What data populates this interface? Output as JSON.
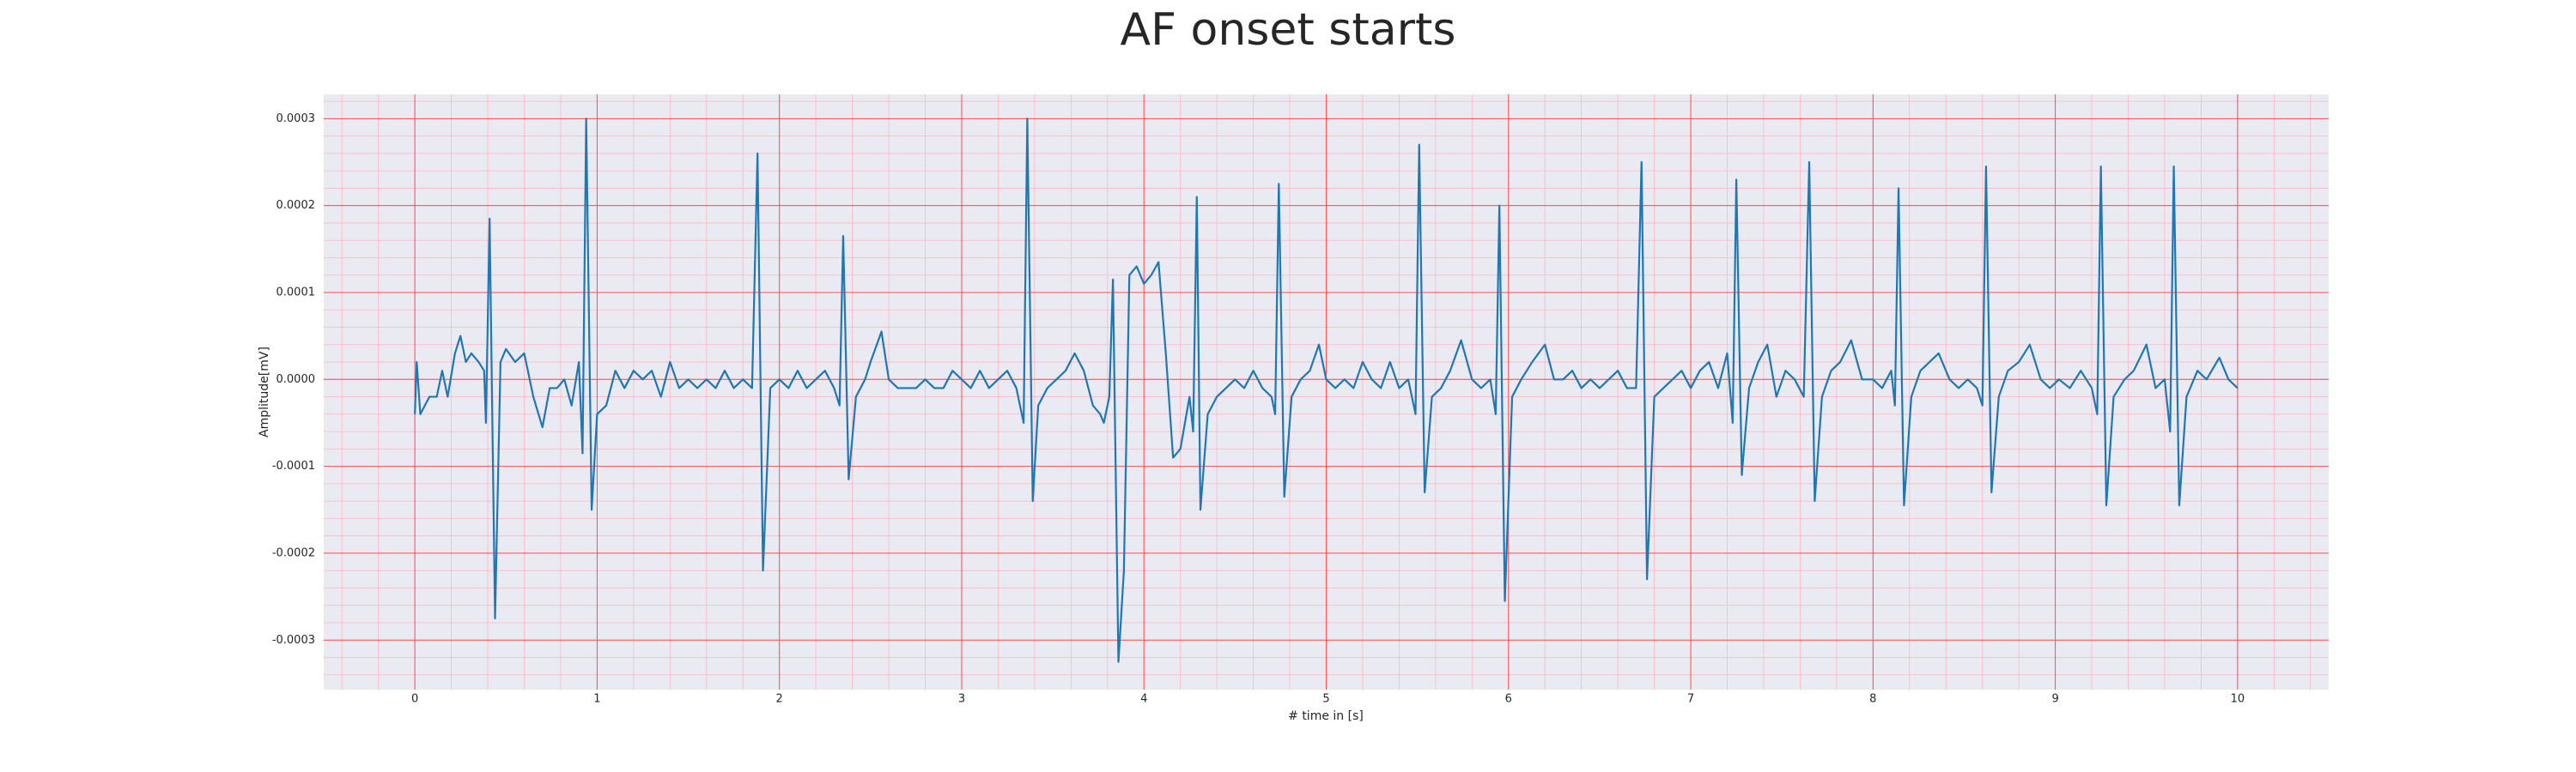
{
  "chart_data": {
    "type": "line",
    "title": "AF onset starts",
    "x_label": "# time in [s]",
    "y_label": "Amplitude[mV]",
    "color": "#1f77b4",
    "grid": true,
    "minor_grid": true,
    "xlim": [
      -0.5,
      10.5
    ],
    "ylim": [
      -0.000357,
      0.000328
    ],
    "xticks": [
      0,
      1,
      2,
      3,
      4,
      5,
      6,
      7,
      8,
      9,
      10
    ],
    "yticks": [
      {
        "value": 0.0003,
        "label": "0.0003"
      },
      {
        "value": 0.0002,
        "label": "0.0002"
      },
      {
        "value": 0.0001,
        "label": "0.0001"
      },
      {
        "value": 0,
        "label": "0.0000"
      },
      {
        "value": -0.0001,
        "label": "-0.0001"
      },
      {
        "value": -0.0002,
        "label": "-0.0002"
      },
      {
        "value": -0.0003,
        "label": "-0.0003"
      }
    ],
    "x": [
      0.0,
      0.01,
      0.03,
      0.08,
      0.12,
      0.15,
      0.18,
      0.22,
      0.25,
      0.28,
      0.31,
      0.35,
      0.38,
      0.39,
      0.41,
      0.44,
      0.47,
      0.5,
      0.55,
      0.6,
      0.65,
      0.7,
      0.74,
      0.78,
      0.82,
      0.86,
      0.9,
      0.92,
      0.94,
      0.97,
      1.0,
      1.05,
      1.1,
      1.15,
      1.2,
      1.25,
      1.3,
      1.35,
      1.4,
      1.45,
      1.5,
      1.55,
      1.6,
      1.65,
      1.7,
      1.75,
      1.8,
      1.85,
      1.88,
      1.91,
      1.95,
      2.0,
      2.05,
      2.1,
      2.15,
      2.2,
      2.25,
      2.3,
      2.33,
      2.35,
      2.38,
      2.42,
      2.47,
      2.5,
      2.56,
      2.6,
      2.65,
      2.7,
      2.75,
      2.8,
      2.85,
      2.9,
      2.95,
      3.0,
      3.05,
      3.1,
      3.15,
      3.2,
      3.25,
      3.3,
      3.34,
      3.36,
      3.39,
      3.42,
      3.47,
      3.52,
      3.57,
      3.62,
      3.67,
      3.72,
      3.76,
      3.78,
      3.81,
      3.83,
      3.86,
      3.89,
      3.92,
      3.96,
      4.0,
      4.04,
      4.08,
      4.12,
      4.16,
      4.2,
      4.25,
      4.27,
      4.29,
      4.31,
      4.35,
      4.4,
      4.45,
      4.5,
      4.55,
      4.6,
      4.65,
      4.7,
      4.72,
      4.74,
      4.77,
      4.81,
      4.86,
      4.91,
      4.96,
      5.0,
      5.05,
      5.1,
      5.15,
      5.2,
      5.25,
      5.3,
      5.35,
      5.4,
      5.45,
      5.49,
      5.51,
      5.54,
      5.58,
      5.63,
      5.68,
      5.74,
      5.8,
      5.85,
      5.9,
      5.93,
      5.95,
      5.98,
      6.02,
      6.07,
      6.13,
      6.2,
      6.25,
      6.3,
      6.35,
      6.4,
      6.45,
      6.5,
      6.55,
      6.6,
      6.65,
      6.7,
      6.73,
      6.76,
      6.8,
      6.85,
      6.9,
      6.95,
      7.0,
      7.05,
      7.1,
      7.15,
      7.2,
      7.23,
      7.25,
      7.28,
      7.32,
      7.37,
      7.42,
      7.47,
      7.52,
      7.57,
      7.62,
      7.65,
      7.68,
      7.72,
      7.77,
      7.82,
      7.88,
      7.94,
      8.0,
      8.05,
      8.1,
      8.12,
      8.14,
      8.17,
      8.21,
      8.26,
      8.31,
      8.36,
      8.42,
      8.47,
      8.52,
      8.57,
      8.6,
      8.62,
      8.65,
      8.69,
      8.74,
      8.8,
      8.86,
      8.92,
      8.97,
      9.02,
      9.08,
      9.14,
      9.2,
      9.23,
      9.25,
      9.28,
      9.32,
      9.38,
      9.43,
      9.5,
      9.55,
      9.6,
      9.63,
      9.65,
      9.68,
      9.72,
      9.78,
      9.83,
      9.9,
      9.95,
      10.0
    ],
    "values": [
      -4e-05,
      2e-05,
      -4e-05,
      -2e-05,
      -2e-05,
      1e-05,
      -2e-05,
      3e-05,
      5e-05,
      2e-05,
      3e-05,
      2e-05,
      1e-05,
      -5e-05,
      0.000185,
      -0.000275,
      2e-05,
      3.5e-05,
      2e-05,
      3e-05,
      -2e-05,
      -5.5e-05,
      -1e-05,
      -1e-05,
      0,
      -3e-05,
      2e-05,
      -8.5e-05,
      0.0003,
      -0.00015,
      -4e-05,
      -3e-05,
      1e-05,
      -1e-05,
      1e-05,
      0,
      1e-05,
      -2e-05,
      2e-05,
      -1e-05,
      0,
      -1e-05,
      0,
      -1e-05,
      1e-05,
      -1e-05,
      0,
      -1e-05,
      0.00026,
      -0.00022,
      -1e-05,
      0,
      -1e-05,
      1e-05,
      -1e-05,
      0,
      1e-05,
      -1e-05,
      -3e-05,
      0.000165,
      -0.000115,
      -2e-05,
      0,
      2e-05,
      5.5e-05,
      0,
      -1e-05,
      -1e-05,
      -1e-05,
      0,
      -1e-05,
      -1e-05,
      1e-05,
      0,
      -1e-05,
      1e-05,
      -1e-05,
      0,
      1e-05,
      -1e-05,
      -5e-05,
      0.0003,
      -0.00014,
      -3e-05,
      -1e-05,
      0,
      1e-05,
      3e-05,
      1e-05,
      -3e-05,
      -4e-05,
      -5e-05,
      -2e-05,
      0.000115,
      -0.000325,
      -0.00022,
      0.00012,
      0.00013,
      0.00011,
      0.00012,
      0.000135,
      3e-05,
      -9e-05,
      -8e-05,
      -2e-05,
      -6e-05,
      0.00021,
      -0.00015,
      -4e-05,
      -2e-05,
      -1e-05,
      0,
      -1e-05,
      1e-05,
      -1e-05,
      -2e-05,
      -4e-05,
      0.000225,
      -0.000135,
      -2e-05,
      0,
      1e-05,
      4e-05,
      0,
      -1e-05,
      0,
      -1e-05,
      2e-05,
      0,
      -1e-05,
      2e-05,
      -1e-05,
      0,
      -4e-05,
      0.00027,
      -0.00013,
      -2e-05,
      -1e-05,
      1e-05,
      4.5e-05,
      0,
      -1e-05,
      0,
      -4e-05,
      0.0002,
      -0.000255,
      -2e-05,
      0,
      2e-05,
      4e-05,
      0,
      0,
      1e-05,
      -1e-05,
      0,
      -1e-05,
      0,
      1e-05,
      -1e-05,
      -1e-05,
      0.00025,
      -0.00023,
      -2e-05,
      -1e-05,
      0,
      1e-05,
      -1e-05,
      1e-05,
      2e-05,
      -1e-05,
      3e-05,
      -5e-05,
      0.00023,
      -0.00011,
      -1e-05,
      2e-05,
      4e-05,
      -2e-05,
      1e-05,
      0,
      -2e-05,
      0.00025,
      -0.00014,
      -2e-05,
      1e-05,
      2e-05,
      4.5e-05,
      0,
      0,
      -1e-05,
      1e-05,
      -3e-05,
      0.00022,
      -0.000145,
      -2e-05,
      1e-05,
      2e-05,
      3e-05,
      0,
      -1e-05,
      0,
      -1e-05,
      -3e-05,
      0.000245,
      -0.00013,
      -2e-05,
      1e-05,
      2e-05,
      4e-05,
      0,
      -1e-05,
      0,
      -1e-05,
      1e-05,
      -1e-05,
      -4e-05,
      0.000245,
      -0.000145,
      -2e-05,
      0,
      1e-05,
      4e-05,
      -1e-05,
      0,
      -6e-05,
      0.000245,
      -0.000145,
      -2e-05,
      1e-05,
      0,
      2.5e-05,
      0,
      -1e-05
    ]
  }
}
